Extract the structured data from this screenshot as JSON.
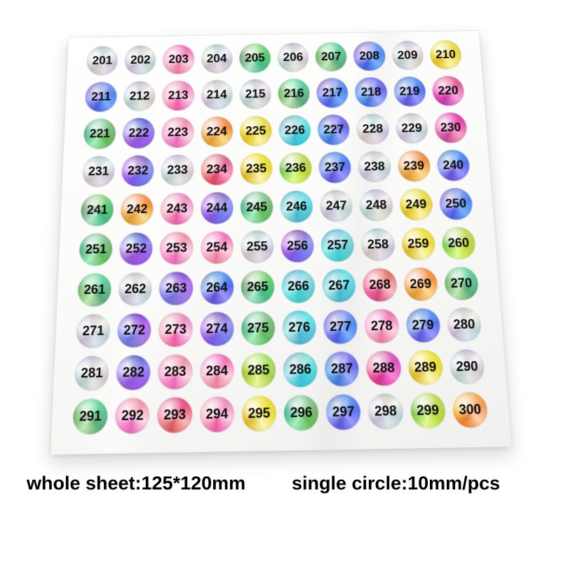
{
  "stickers": {
    "numbers": [
      "201",
      "202",
      "203",
      "204",
      "205",
      "206",
      "207",
      "208",
      "209",
      "210",
      "211",
      "212",
      "213",
      "214",
      "215",
      "216",
      "217",
      "218",
      "219",
      "220",
      "221",
      "222",
      "223",
      "224",
      "225",
      "226",
      "227",
      "228",
      "229",
      "230",
      "231",
      "232",
      "233",
      "234",
      "235",
      "236",
      "237",
      "238",
      "239",
      "240",
      "241",
      "242",
      "243",
      "244",
      "245",
      "246",
      "247",
      "248",
      "249",
      "250",
      "251",
      "252",
      "253",
      "254",
      "255",
      "256",
      "257",
      "258",
      "259",
      "260",
      "261",
      "262",
      "263",
      "264",
      "265",
      "266",
      "267",
      "268",
      "269",
      "270",
      "271",
      "272",
      "273",
      "274",
      "275",
      "276",
      "277",
      "278",
      "279",
      "280",
      "281",
      "282",
      "283",
      "284",
      "285",
      "286",
      "287",
      "288",
      "289",
      "290",
      "291",
      "292",
      "293",
      "294",
      "295",
      "296",
      "297",
      "298",
      "299",
      "300"
    ],
    "styles": [
      "silver",
      "silver",
      "pink",
      "silver",
      "green",
      "silver",
      "green",
      "blue",
      "silver",
      "yellow",
      "blue",
      "silver",
      "pink",
      "silver",
      "silver",
      "green",
      "blue",
      "blue",
      "blue",
      "magenta",
      "green",
      "purple",
      "pink",
      "orange",
      "yellow",
      "cyan",
      "blue",
      "silver",
      "silver",
      "magenta",
      "silver",
      "purple",
      "silver",
      "red",
      "yellow",
      "lime",
      "blue",
      "silver",
      "orange",
      "blue",
      "green",
      "orange",
      "pink",
      "purple",
      "green",
      "cyan",
      "silver",
      "silver",
      "yellow",
      "blue",
      "green",
      "purple",
      "pink",
      "pink",
      "silver",
      "purple",
      "cyan",
      "silver",
      "yellow",
      "lime",
      "green",
      "silver",
      "purple",
      "blue",
      "green",
      "cyan",
      "cyan",
      "red",
      "orange",
      "green",
      "silver",
      "purple",
      "pink",
      "purple",
      "green",
      "cyan",
      "blue",
      "pink",
      "blue",
      "silver",
      "silver",
      "purple",
      "pink",
      "pink",
      "lime",
      "cyan",
      "blue",
      "magenta",
      "yellow",
      "silver",
      "green",
      "pink",
      "red",
      "pink",
      "yellow",
      "green",
      "blue",
      "silver",
      "lime",
      "orange"
    ]
  },
  "captions": {
    "left": "whole sheet:125*120mm",
    "right": "single circle:10mm/pcs"
  },
  "palette": {
    "silver": "#d6d8da",
    "blue": "#5a78e8",
    "purple": "#8f6fe0",
    "pink": "#f28ab8",
    "magenta": "#e055ab",
    "green": "#5fc878",
    "lime": "#b0dc50",
    "yellow": "#eedd44",
    "cyan": "#49c8d2",
    "orange": "#f0a24a",
    "red": "#e56a7a",
    "number_text": "#141414",
    "sheet": "#fafafa"
  }
}
